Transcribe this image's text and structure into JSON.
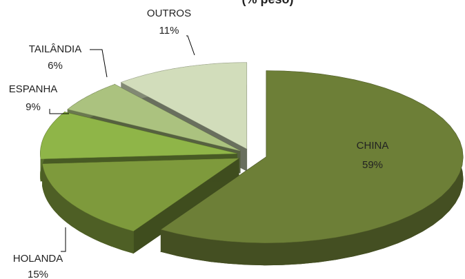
{
  "chart_data": {
    "type": "pie",
    "title": "(% peso)",
    "categories": [
      "CHINA",
      "HOLANDA",
      "ESPANHA",
      "TAILÂNDIA",
      "OUTROS"
    ],
    "values": [
      59,
      15,
      9,
      6,
      11
    ],
    "value_labels": [
      "59%",
      "15%",
      "9%",
      "6%",
      "11%"
    ],
    "colors": [
      "#6d7f37",
      "#7e9a3c",
      "#8fb548",
      "#abc27f",
      "#d2ddbb"
    ]
  }
}
